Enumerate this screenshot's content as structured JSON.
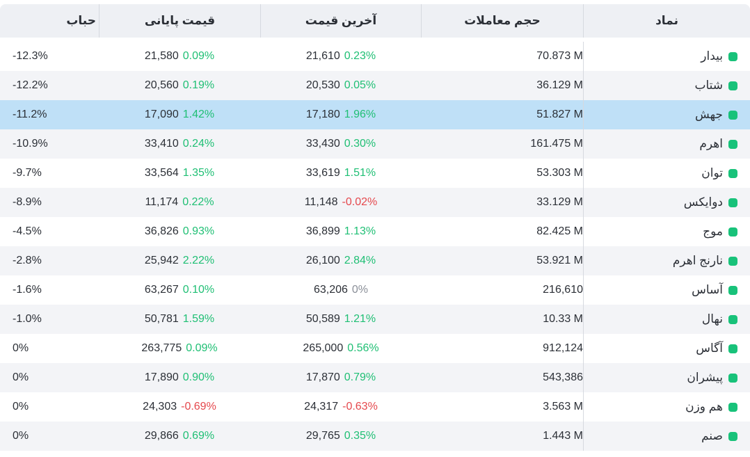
{
  "headers": {
    "symbol": "نماد",
    "volume": "حجم معاملات",
    "last_price": "آخرین قیمت",
    "close_price": "قیمت پایانی",
    "bubble": "حباب"
  },
  "colors": {
    "positive": "#1fbf74",
    "negative": "#e5484d",
    "neutral": "#8a8f98",
    "dot": "#18c27a",
    "selected_row": "#bfe0f7"
  },
  "rows": [
    {
      "symbol": "بیدار",
      "volume": "70.873 M",
      "last": "21,610",
      "last_pct": "0.23%",
      "last_dir": "pos",
      "close": "21,580",
      "close_pct": "0.09%",
      "close_dir": "pos",
      "bubble": "-12.3%"
    },
    {
      "symbol": "شتاب",
      "volume": "36.129 M",
      "last": "20,530",
      "last_pct": "0.05%",
      "last_dir": "pos",
      "close": "20,560",
      "close_pct": "0.19%",
      "close_dir": "pos",
      "bubble": "-12.2%"
    },
    {
      "symbol": "جهش",
      "volume": "51.827 M",
      "last": "17,180",
      "last_pct": "1.96%",
      "last_dir": "pos",
      "close": "17,090",
      "close_pct": "1.42%",
      "close_dir": "pos",
      "bubble": "-11.2%",
      "selected": true
    },
    {
      "symbol": "اهرم",
      "volume": "161.475 M",
      "last": "33,430",
      "last_pct": "0.30%",
      "last_dir": "pos",
      "close": "33,410",
      "close_pct": "0.24%",
      "close_dir": "pos",
      "bubble": "-10.9%"
    },
    {
      "symbol": "توان",
      "volume": "53.303 M",
      "last": "33,619",
      "last_pct": "1.51%",
      "last_dir": "pos",
      "close": "33,564",
      "close_pct": "1.35%",
      "close_dir": "pos",
      "bubble": "-9.7%"
    },
    {
      "symbol": "دوایکس",
      "volume": "33.129 M",
      "last": "11,148",
      "last_pct": "-0.02%",
      "last_dir": "neg",
      "close": "11,174",
      "close_pct": "0.22%",
      "close_dir": "pos",
      "bubble": "-8.9%"
    },
    {
      "symbol": "موج",
      "volume": "82.425 M",
      "last": "36,899",
      "last_pct": "1.13%",
      "last_dir": "pos",
      "close": "36,826",
      "close_pct": "0.93%",
      "close_dir": "pos",
      "bubble": "-4.5%"
    },
    {
      "symbol": "نارنج اهرم",
      "volume": "53.921 M",
      "last": "26,100",
      "last_pct": "2.84%",
      "last_dir": "pos",
      "close": "25,942",
      "close_pct": "2.22%",
      "close_dir": "pos",
      "bubble": "-2.8%"
    },
    {
      "symbol": "آساس",
      "volume": "216,610",
      "last": "63,206",
      "last_pct": "0%",
      "last_dir": "zero",
      "close": "63,267",
      "close_pct": "0.10%",
      "close_dir": "pos",
      "bubble": "-1.6%"
    },
    {
      "symbol": "نهال",
      "volume": "10.33 M",
      "last": "50,589",
      "last_pct": "1.21%",
      "last_dir": "pos",
      "close": "50,781",
      "close_pct": "1.59%",
      "close_dir": "pos",
      "bubble": "-1.0%"
    },
    {
      "symbol": "آگاس",
      "volume": "912,124",
      "last": "265,000",
      "last_pct": "0.56%",
      "last_dir": "pos",
      "close": "263,775",
      "close_pct": "0.09%",
      "close_dir": "pos",
      "bubble": "0%"
    },
    {
      "symbol": "پیشران",
      "volume": "543,386",
      "last": "17,870",
      "last_pct": "0.79%",
      "last_dir": "pos",
      "close": "17,890",
      "close_pct": "0.90%",
      "close_dir": "pos",
      "bubble": "0%"
    },
    {
      "symbol": "هم وزن",
      "volume": "3.563 M",
      "last": "24,317",
      "last_pct": "-0.63%",
      "last_dir": "neg",
      "close": "24,303",
      "close_pct": "-0.69%",
      "close_dir": "neg",
      "bubble": "0%"
    },
    {
      "symbol": "صنم",
      "volume": "1.443 M",
      "last": "29,765",
      "last_pct": "0.35%",
      "last_dir": "pos",
      "close": "29,866",
      "close_pct": "0.69%",
      "close_dir": "pos",
      "bubble": "0%"
    }
  ]
}
